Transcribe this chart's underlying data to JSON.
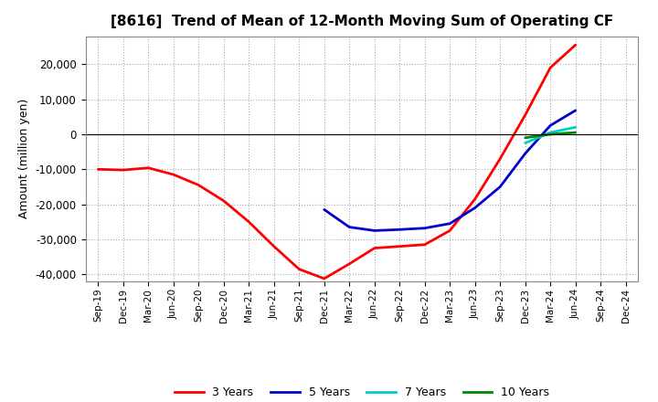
{
  "title": "[8616]  Trend of Mean of 12-Month Moving Sum of Operating CF",
  "ylabel": "Amount (million yen)",
  "background_color": "#ffffff",
  "plot_bg_color": "#ffffff",
  "grid_color": "#aaaaaa",
  "ylim": [
    -42000,
    28000
  ],
  "yticks": [
    -40000,
    -30000,
    -20000,
    -10000,
    0,
    10000,
    20000
  ],
  "x_labels": [
    "Sep-19",
    "Dec-19",
    "Mar-20",
    "Jun-20",
    "Sep-20",
    "Dec-20",
    "Mar-21",
    "Jun-21",
    "Sep-21",
    "Dec-21",
    "Mar-22",
    "Jun-22",
    "Sep-22",
    "Dec-22",
    "Mar-23",
    "Jun-23",
    "Sep-23",
    "Dec-23",
    "Mar-24",
    "Jun-24",
    "Sep-24",
    "Dec-24"
  ],
  "series": {
    "3 Years": {
      "color": "#ff0000",
      "linewidth": 2.0,
      "values": [
        -10000,
        -10200,
        -9600,
        -11500,
        -14500,
        -19000,
        -25000,
        -32000,
        -38500,
        -41200,
        -37000,
        -32500,
        -32000,
        -31500,
        -27500,
        -18500,
        -7000,
        5500,
        19000,
        25500,
        null,
        null
      ]
    },
    "5 Years": {
      "color": "#0000cc",
      "linewidth": 2.0,
      "values": [
        null,
        null,
        null,
        null,
        null,
        null,
        null,
        null,
        null,
        -21500,
        -26500,
        -27500,
        -27200,
        -26800,
        -25500,
        -21000,
        -15000,
        -5500,
        2500,
        6800,
        null,
        null
      ]
    },
    "7 Years": {
      "color": "#00cccc",
      "linewidth": 2.0,
      "values": [
        null,
        null,
        null,
        null,
        null,
        null,
        null,
        null,
        null,
        null,
        null,
        null,
        null,
        null,
        null,
        null,
        null,
        -2500,
        500,
        2000,
        null,
        null
      ]
    },
    "10 Years": {
      "color": "#008800",
      "linewidth": 2.0,
      "values": [
        null,
        null,
        null,
        null,
        null,
        null,
        null,
        null,
        null,
        null,
        null,
        null,
        null,
        null,
        null,
        null,
        null,
        -1000,
        0,
        500,
        null,
        null
      ]
    }
  },
  "legend_order": [
    "3 Years",
    "5 Years",
    "7 Years",
    "10 Years"
  ]
}
